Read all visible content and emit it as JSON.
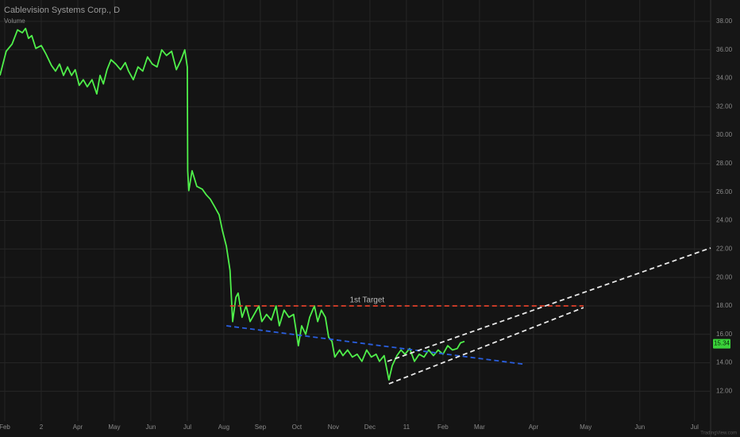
{
  "chart_data": {
    "type": "line",
    "title": "Cablevision Systems Corp., D",
    "subtitle": "Volume",
    "watermark": "TradingView.com",
    "x": [
      -0.13,
      0.04,
      0.2,
      0.35,
      0.48,
      0.57,
      0.65,
      0.74,
      0.85,
      1.0,
      1.13,
      1.28,
      1.39,
      1.5,
      1.61,
      1.72,
      1.83,
      1.93,
      2.04,
      2.15,
      2.26,
      2.39,
      2.52,
      2.61,
      2.7,
      2.8,
      2.91,
      3.04,
      3.17,
      3.3,
      3.39,
      3.52,
      3.65,
      3.78,
      3.91,
      4.04,
      4.17,
      4.3,
      4.43,
      4.57,
      4.7,
      4.83,
      4.93,
      5.0,
      5.01,
      5.04,
      5.13,
      5.26,
      5.41,
      5.52,
      5.63,
      5.74,
      5.87,
      5.96,
      6.07,
      6.17,
      6.24,
      6.33,
      6.39,
      6.5,
      6.61,
      6.72,
      6.83,
      6.96,
      7.04,
      7.17,
      7.3,
      7.43,
      7.52,
      7.65,
      7.78,
      7.91,
      8.04,
      8.13,
      8.24,
      8.35,
      8.48,
      8.57,
      8.67,
      8.78,
      8.87,
      8.96,
      9.04,
      9.17,
      9.26,
      9.39,
      9.52,
      9.65,
      9.78,
      9.91,
      10.04,
      10.17,
      10.26,
      10.39,
      10.52,
      10.61,
      10.74,
      10.85,
      10.96,
      11.09,
      11.22,
      11.35,
      11.48,
      11.61,
      11.74,
      11.87,
      12.0,
      12.13,
      12.26,
      12.39,
      12.48,
      12.59
    ],
    "series": [
      {
        "color": "#4ff04a",
        "values": [
          34.2,
          35.9,
          36.4,
          37.4,
          37.2,
          37.5,
          36.8,
          37.0,
          36.1,
          36.3,
          35.7,
          34.9,
          34.5,
          35.0,
          34.2,
          34.8,
          34.2,
          34.6,
          33.5,
          33.9,
          33.4,
          33.9,
          32.9,
          34.2,
          33.6,
          34.6,
          35.3,
          35.0,
          34.6,
          35.1,
          34.5,
          33.9,
          34.8,
          34.5,
          35.5,
          35.0,
          34.8,
          36.0,
          35.6,
          35.9,
          34.6,
          35.3,
          36.0,
          34.8,
          27.5,
          26.1,
          27.5,
          26.4,
          26.2,
          25.8,
          25.5,
          25.0,
          24.4,
          23.3,
          22.2,
          20.5,
          16.9,
          18.6,
          18.9,
          17.2,
          18.0,
          16.9,
          17.4,
          18.0,
          16.9,
          17.4,
          17.0,
          18.0,
          16.6,
          17.7,
          17.2,
          17.4,
          15.2,
          16.6,
          16.0,
          17.2,
          18.0,
          16.9,
          17.7,
          17.2,
          15.8,
          15.5,
          14.4,
          14.9,
          14.5,
          14.9,
          14.4,
          14.6,
          14.1,
          14.9,
          14.4,
          14.6,
          14.1,
          14.5,
          12.8,
          13.8,
          14.5,
          14.9,
          14.6,
          15.0,
          14.1,
          14.6,
          14.4,
          14.9,
          14.5,
          14.9,
          14.6,
          15.2,
          14.9,
          15.0,
          15.4,
          15.5
        ]
      }
    ],
    "last_price": 15.34,
    "xlim": [
      -0.13,
      19.33
    ],
    "ylim": [
      9.9,
      39.5
    ],
    "xticks": [
      {
        "value": 0,
        "label": "Feb"
      },
      {
        "value": 1,
        "label": "2"
      },
      {
        "value": 2,
        "label": "Apr"
      },
      {
        "value": 3,
        "label": "May"
      },
      {
        "value": 4,
        "label": "Jun"
      },
      {
        "value": 5,
        "label": "Jul"
      },
      {
        "value": 6,
        "label": "Aug"
      },
      {
        "value": 7,
        "label": "Sep"
      },
      {
        "value": 8,
        "label": "Oct"
      },
      {
        "value": 9,
        "label": "Nov"
      },
      {
        "value": 10,
        "label": "Dec"
      },
      11.0,
      {
        "value": 12,
        "label": "Feb"
      },
      {
        "value": 13,
        "label": "Mar"
      },
      {
        "value": 14.48,
        "label": "Apr"
      },
      {
        "value": 15.91,
        "label": "May"
      },
      {
        "value": 17.39,
        "label": "Jun"
      },
      {
        "value": 18.89,
        "label": "Jul"
      }
    ],
    "yticks": [
      {
        "value": 12,
        "label": "12.00"
      },
      {
        "value": 14,
        "label": "14.00"
      },
      {
        "value": 16,
        "label": "16.00"
      },
      {
        "value": 18,
        "label": "18.00"
      },
      {
        "value": 20,
        "label": "20.00"
      },
      {
        "value": 22,
        "label": "22.00"
      },
      {
        "value": 24,
        "label": "24.00"
      },
      {
        "value": 26,
        "label": "26.00"
      },
      {
        "value": 28,
        "label": "28.00"
      },
      {
        "value": 30,
        "label": "30.00"
      },
      {
        "value": 32,
        "label": "32.00"
      },
      {
        "value": 34,
        "label": "34.00"
      },
      {
        "value": 36,
        "label": "36.00"
      },
      {
        "value": 38,
        "label": "38.00"
      }
    ],
    "grid": true,
    "drawings": [
      {
        "color": "#e0402a",
        "x": [
          6.17,
          15.85
        ],
        "y": [
          18.0,
          18.0
        ],
        "label": "1st Target"
      },
      {
        "color": "#2a5fe0",
        "x": [
          6.07,
          14.22
        ],
        "y": [
          16.6,
          13.9
        ]
      },
      {
        "color": "#e8e8e8",
        "x": [
          10.48,
          19.33
        ],
        "y": [
          14.1,
          22.07
        ]
      },
      {
        "color": "#e8e8e8",
        "x": [
          10.52,
          15.85
        ],
        "y": [
          12.52,
          17.88
        ]
      }
    ]
  }
}
